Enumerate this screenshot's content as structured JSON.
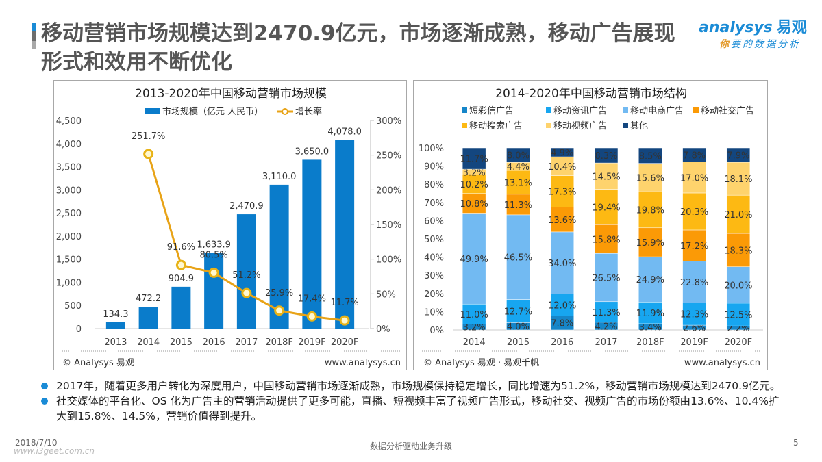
{
  "header": {
    "title": "移动营销市场规模达到2470.9亿元，市场逐渐成熟，移动广告展现形式和效用不断优化",
    "logo_main": "nalysys",
    "logo_prefix": "a",
    "logo_cn": "易观",
    "logo_sub_first": "你",
    "logo_sub_rest": "要的数据分析"
  },
  "chart_data": [
    {
      "type": "bar+line",
      "title": "2013-2020年中国移动营销市场规模",
      "categories": [
        "2013",
        "2014",
        "2015",
        "2016",
        "2017",
        "2018F",
        "2019F",
        "2020F"
      ],
      "series": [
        {
          "name": "市场规模（亿元 人民币）",
          "type": "bar",
          "axis": "left",
          "color": "#0a7ccb",
          "values": [
            134.3,
            472.2,
            904.9,
            1633.9,
            2470.9,
            3110.0,
            3650.0,
            4078.0
          ],
          "labels": [
            "134.3",
            "472.2",
            "904.9",
            "1,633.9",
            "2,470.9",
            "3,110.0",
            "3,650.0",
            "4,078.0"
          ]
        },
        {
          "name": "增长率",
          "type": "line",
          "axis": "right",
          "color": "#e8a317",
          "values": [
            null,
            251.7,
            91.6,
            80.5,
            51.2,
            25.9,
            17.4,
            11.7
          ],
          "labels": [
            "",
            "251.7%",
            "91.6%",
            "80.5%",
            "51.2%",
            "25.9%",
            "17.4%",
            "11.7%"
          ]
        }
      ],
      "y_left": {
        "min": 0,
        "max": 4500,
        "ticks": [
          "0",
          "500",
          "1,000",
          "1,500",
          "2,000",
          "2,500",
          "3,000",
          "3,500",
          "4,000",
          "4,500"
        ]
      },
      "y_right": {
        "min": 0,
        "max": 300,
        "ticks": [
          "0%",
          "50%",
          "100%",
          "150%",
          "200%",
          "250%",
          "300%"
        ]
      },
      "legend_position": "top",
      "grid": false,
      "source": "© Analysys 易观",
      "url": "www.analysys.cn"
    },
    {
      "type": "stacked-bar-100",
      "title": "2014-2020年中国移动营销市场结构",
      "categories": [
        "2014",
        "2015",
        "2016",
        "2017",
        "2018F",
        "2019F",
        "2020F"
      ],
      "series": [
        {
          "name": "短彩信广告",
          "color": "#1686c9",
          "values": [
            3.2,
            4.0,
            7.8,
            4.2,
            3.4,
            2.6,
            2.2
          ]
        },
        {
          "name": "移动资讯广告",
          "color": "#17a6f0",
          "values": [
            11.0,
            12.7,
            12.0,
            11.3,
            11.9,
            12.3,
            12.5
          ]
        },
        {
          "name": "移动电商广告",
          "color": "#72baf2",
          "values": [
            49.9,
            46.5,
            34.0,
            26.5,
            24.9,
            22.8,
            20.0
          ]
        },
        {
          "name": "移动社交广告",
          "color": "#fb9a06",
          "values": [
            10.8,
            11.3,
            13.6,
            15.8,
            15.9,
            17.2,
            18.3
          ]
        },
        {
          "name": "移动搜索广告",
          "color": "#fdb913",
          "values": [
            10.2,
            13.1,
            17.3,
            19.4,
            19.8,
            20.3,
            21.0
          ]
        },
        {
          "name": "移动视频广告",
          "color": "#fed36d",
          "values": [
            3.2,
            4.4,
            10.4,
            14.5,
            15.6,
            17.0,
            18.1
          ]
        },
        {
          "name": "其他",
          "color": "#13467f",
          "values": [
            11.7,
            8.0,
            4.9,
            8.3,
            8.5,
            7.8,
            7.9
          ]
        }
      ],
      "y": {
        "min": 0,
        "max": 100,
        "ticks": [
          "0%",
          "10%",
          "20%",
          "30%",
          "40%",
          "50%",
          "60%",
          "70%",
          "80%",
          "90%",
          "100%"
        ]
      },
      "legend_position": "top",
      "grid": false,
      "source": "© Analysys 易观 · 易观千帆",
      "url": "www.analysys.cn"
    }
  ],
  "bullets": [
    "2017年，随着更多用户转化为深度用户，中国移动营销市场逐渐成熟，市场规模保持稳定增长，同比增速为51.2%，移动营销市场规模达到2470.9亿元。",
    "社交媒体的平台化、OS 化为广告主的营销活动提供了更多可能，直播、短视频丰富了视频广告形式，移动社交、视频广告的市场份额由13.6%、10.4%扩大到15.8%、14.5%，营销价值得到提升。"
  ],
  "footer": {
    "date": "2018/7/10",
    "center": "数据分析驱动业务升级",
    "page": "5",
    "watermark": "www.i3geet.com.cn"
  }
}
